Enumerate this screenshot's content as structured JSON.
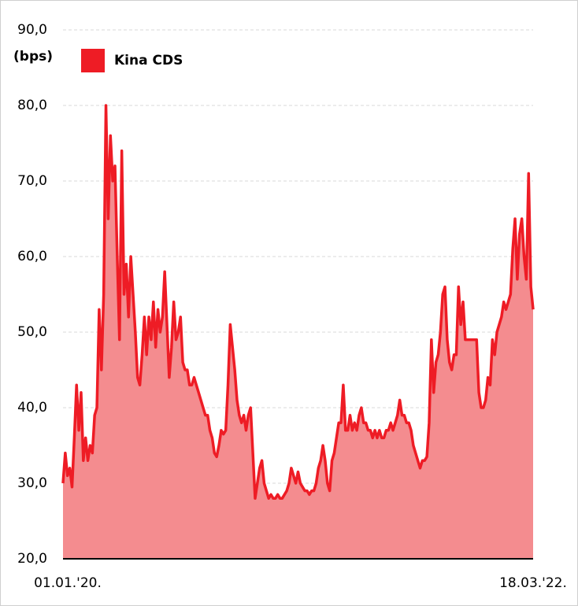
{
  "chart_data": {
    "type": "area",
    "y_label": "(bps)",
    "legend": "top-left",
    "grid": true,
    "ylim": [
      20,
      90
    ],
    "yticks": [
      {
        "value": 20,
        "label": "20,0"
      },
      {
        "value": 30,
        "label": "30,0"
      },
      {
        "value": 40,
        "label": "40,0"
      },
      {
        "value": 50,
        "label": "50,0"
      },
      {
        "value": 60,
        "label": "60,0"
      },
      {
        "value": 70,
        "label": "70,0"
      },
      {
        "value": 80,
        "label": "80,0"
      },
      {
        "value": 90,
        "label": "90,0"
      }
    ],
    "categories": [
      "01.01.'20.",
      null,
      null,
      null,
      null,
      null,
      null,
      null,
      null,
      null,
      null,
      null,
      null,
      null,
      null,
      null,
      null,
      null,
      null,
      null,
      null,
      null,
      null,
      null,
      null,
      null,
      null,
      null,
      null,
      null,
      null,
      null,
      null,
      null,
      null,
      null,
      null,
      null,
      null,
      null,
      null,
      null,
      null,
      null,
      null,
      null,
      null,
      null,
      null,
      null,
      null,
      null,
      null,
      null,
      null,
      null,
      null,
      null,
      null,
      null,
      null,
      null,
      null,
      null,
      null,
      null,
      null,
      null,
      null,
      null,
      null,
      null,
      null,
      null,
      null,
      null,
      null,
      null,
      null,
      null,
      null,
      null,
      null,
      null,
      null,
      null,
      null,
      null,
      null,
      null,
      null,
      null,
      null,
      null,
      null,
      null,
      null,
      null,
      null,
      null,
      null,
      null,
      null,
      null,
      null,
      null,
      null,
      null,
      null,
      null,
      null,
      null,
      null,
      null,
      null,
      null,
      null,
      null,
      null,
      null,
      null,
      null,
      null,
      null,
      null,
      null,
      null,
      null,
      null,
      null,
      null,
      null,
      null,
      null,
      null,
      null,
      null,
      null,
      null,
      null,
      null,
      null,
      null,
      null,
      null,
      null,
      null,
      null,
      null,
      null,
      null,
      null,
      null,
      null,
      null,
      null,
      null,
      null,
      null,
      null,
      null,
      null,
      null,
      null,
      null,
      null,
      null,
      null,
      null,
      null,
      null,
      null,
      null,
      null,
      null,
      null,
      null,
      null,
      null,
      null,
      null,
      null,
      null,
      null,
      null,
      null,
      null,
      null,
      null,
      null,
      null,
      null,
      null,
      null,
      null,
      null,
      null,
      null,
      null,
      null,
      null,
      null,
      null,
      null,
      null,
      null,
      null,
      null,
      "18.03.'22."
    ],
    "series": [
      {
        "name": "Kina CDS",
        "color": "#ee1c25",
        "fill_color": "#f48c8f",
        "values": [
          30,
          34,
          31,
          32,
          29.5,
          36,
          43,
          37,
          42,
          33,
          36,
          33,
          35,
          34,
          39,
          40,
          53,
          45,
          55,
          80,
          65,
          76,
          70,
          72,
          60,
          49,
          74,
          55,
          59,
          52,
          60,
          55,
          50,
          44,
          43,
          47,
          52,
          47,
          52,
          49,
          54,
          48,
          53,
          50,
          52,
          58,
          51,
          44,
          48,
          54,
          49,
          50,
          52,
          46,
          45,
          45,
          43,
          43,
          44,
          43,
          42,
          41,
          40,
          39,
          39,
          37,
          36,
          34,
          33.5,
          35,
          37,
          36.5,
          37,
          43,
          51,
          48,
          45,
          41,
          39,
          38,
          39,
          37,
          39,
          40,
          34,
          28,
          30,
          32,
          33,
          30,
          29,
          28,
          28.5,
          28,
          28,
          28.5,
          28,
          28,
          28.5,
          29,
          30,
          32,
          31,
          30,
          31.5,
          30,
          29.5,
          29,
          29,
          28.5,
          29,
          29,
          30,
          32,
          33,
          35,
          33,
          30,
          29,
          33,
          34,
          36,
          38,
          38,
          43,
          37,
          37,
          39,
          37,
          38,
          37,
          39,
          40,
          38,
          38,
          37,
          37,
          36,
          37,
          36,
          37,
          36,
          36,
          37,
          37,
          38,
          37,
          38,
          39,
          41,
          39,
          39,
          38,
          38,
          37,
          35,
          34,
          33,
          32,
          33,
          33,
          33.5,
          38,
          49,
          42,
          46,
          47,
          50,
          55,
          56,
          49,
          46,
          45,
          47,
          47,
          56,
          51,
          54,
          49,
          49,
          49,
          49,
          49,
          49,
          42,
          40,
          40,
          41,
          44,
          43,
          49,
          47,
          50,
          51,
          52,
          54,
          53,
          54,
          55,
          61,
          65,
          57,
          63,
          65,
          60,
          57,
          71,
          56,
          53
        ]
      }
    ]
  }
}
